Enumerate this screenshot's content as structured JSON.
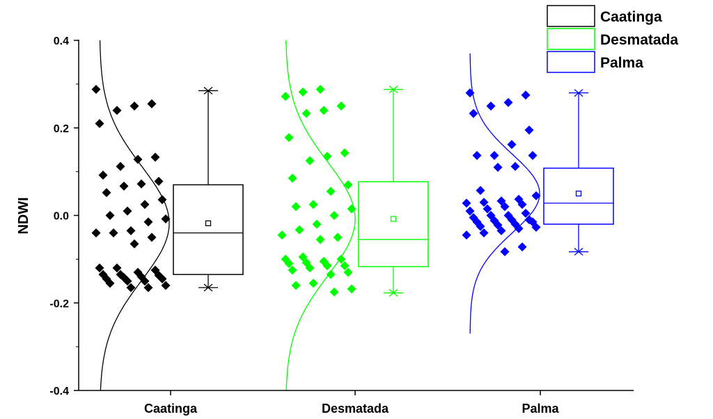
{
  "chart_data": {
    "type": "box",
    "ylabel": "NDWI",
    "ylim": [
      -0.4,
      0.4
    ],
    "yticks": [
      -0.4,
      -0.2,
      0.0,
      0.2,
      0.4
    ],
    "ytick_labels": [
      "-0.4",
      "-0.2",
      "0.0",
      "0.2",
      "0.4"
    ],
    "categories": [
      "Caatinga",
      "Desmatada",
      "Palma"
    ],
    "legend": {
      "position": "top-right",
      "entries": [
        "Caatinga",
        "Desmatada",
        "Palma"
      ]
    },
    "grid": false,
    "series": [
      {
        "name": "Caatinga",
        "color": "#000000",
        "box": {
          "q1": -0.135,
          "median": -0.04,
          "q3": 0.07,
          "mean": -0.018,
          "whisker_low": -0.165,
          "whisker_high": 0.285
        },
        "points": [
          0.288,
          0.255,
          0.25,
          0.24,
          0.21,
          0.133,
          0.128,
          0.112,
          0.092,
          0.078,
          0.072,
          0.067,
          0.052,
          0.036,
          0.025,
          0.01,
          0.0,
          -0.008,
          -0.015,
          -0.035,
          -0.04,
          -0.04,
          -0.05,
          -0.065,
          -0.12,
          -0.12,
          -0.125,
          -0.13,
          -0.135,
          -0.135,
          -0.137,
          -0.14,
          -0.142,
          -0.145,
          -0.145,
          -0.15,
          -0.15,
          -0.155,
          -0.16,
          -0.165,
          -0.165
        ],
        "normal_curve": {
          "mean": -0.018,
          "sd": 0.13
        }
      },
      {
        "name": "Desmatada",
        "color": "#00ff00",
        "box": {
          "q1": -0.117,
          "median": -0.055,
          "q3": 0.077,
          "mean": -0.008,
          "whisker_low": -0.177,
          "whisker_high": 0.288
        },
        "points": [
          0.288,
          0.282,
          0.272,
          0.25,
          0.24,
          0.233,
          0.178,
          0.143,
          0.135,
          0.125,
          0.085,
          0.07,
          0.055,
          0.025,
          0.02,
          0.015,
          0.0,
          -0.02,
          -0.033,
          -0.045,
          -0.05,
          -0.055,
          -0.095,
          -0.1,
          -0.1,
          -0.105,
          -0.108,
          -0.11,
          -0.115,
          -0.115,
          -0.12,
          -0.125,
          -0.13,
          -0.135,
          -0.155,
          -0.16,
          -0.168,
          -0.175
        ],
        "normal_curve": {
          "mean": -0.008,
          "sd": 0.13
        }
      },
      {
        "name": "Palma",
        "color": "#0000ff",
        "box": {
          "q1": -0.02,
          "median": 0.028,
          "q3": 0.108,
          "mean": 0.05,
          "whisker_low": -0.083,
          "whisker_high": 0.28
        },
        "points": [
          0.28,
          0.275,
          0.258,
          0.25,
          0.233,
          0.195,
          0.162,
          0.137,
          0.137,
          0.137,
          0.112,
          0.11,
          0.057,
          0.045,
          0.037,
          0.033,
          0.03,
          0.028,
          0.025,
          0.02,
          0.015,
          0.01,
          0.005,
          0.0,
          0.0,
          -0.005,
          -0.01,
          -0.01,
          -0.012,
          -0.015,
          -0.015,
          -0.02,
          -0.022,
          -0.025,
          -0.027,
          -0.03,
          -0.035,
          -0.04,
          -0.045,
          -0.072,
          -0.083
        ],
        "normal_curve": {
          "mean": 0.05,
          "sd": 0.09
        }
      }
    ]
  }
}
